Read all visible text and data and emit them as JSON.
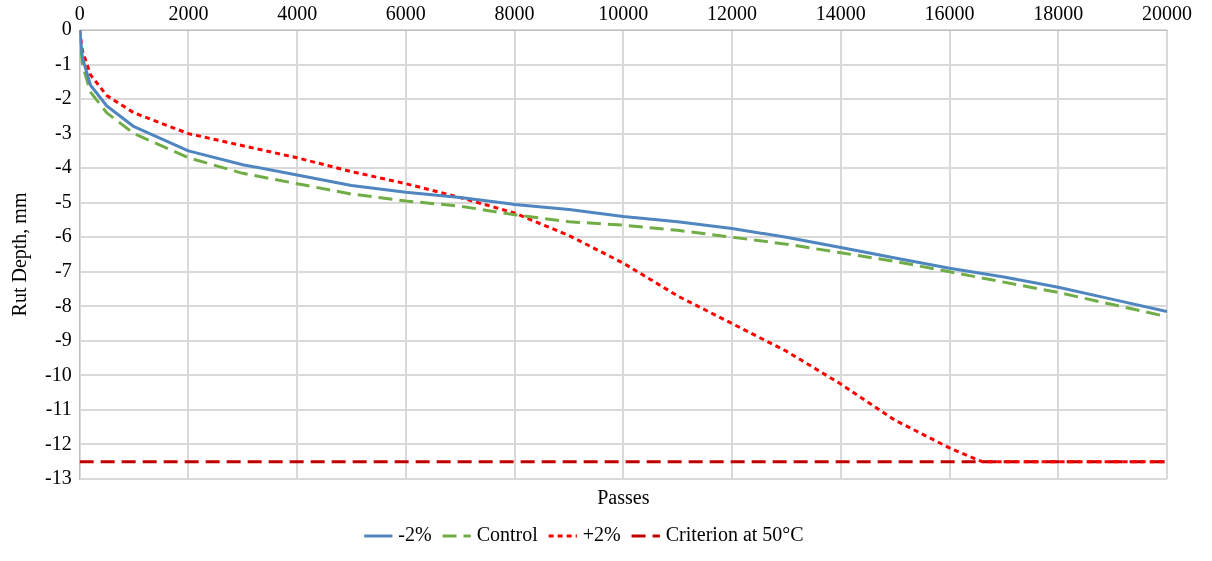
{
  "chart_data": {
    "type": "line",
    "xlabel": "Passes",
    "ylabel": "Rut Depth, mm",
    "xlim": [
      0,
      20000
    ],
    "xticks": [
      0,
      2000,
      4000,
      6000,
      8000,
      10000,
      12000,
      14000,
      16000,
      18000,
      20000
    ],
    "ylim": [
      -13,
      0
    ],
    "yticks": [
      -13,
      -12,
      -11,
      -10,
      -9,
      -8,
      -7,
      -6,
      -5,
      -4,
      -3,
      -2,
      -1,
      0
    ],
    "grid": true,
    "legend": "bottom",
    "marker": "none",
    "series": [
      {
        "name": "-2%",
        "color": "#4f86c0",
        "line_style": "solid",
        "x": [
          0,
          50,
          200,
          500,
          1000,
          2000,
          3000,
          4000,
          5000,
          6000,
          7000,
          8000,
          9000,
          10000,
          11000,
          12000,
          13000,
          14000,
          15000,
          16000,
          17000,
          18000,
          19000,
          20000
        ],
        "values": [
          0,
          -0.8,
          -1.6,
          -2.2,
          -2.8,
          -3.5,
          -3.9,
          -4.2,
          -4.5,
          -4.7,
          -4.85,
          -5.05,
          -5.2,
          -5.4,
          -5.55,
          -5.75,
          -6,
          -6.3,
          -6.6,
          -6.9,
          -7.15,
          -7.45,
          -7.8,
          -8.15
        ]
      },
      {
        "name": "Control",
        "color": "#70ad47",
        "line_style": "dashed",
        "x": [
          0,
          50,
          200,
          500,
          1000,
          2000,
          3000,
          4000,
          5000,
          6000,
          7000,
          8000,
          9000,
          10000,
          11000,
          12000,
          13000,
          14000,
          15000,
          16000,
          17000,
          18000,
          19000,
          20000
        ],
        "values": [
          0,
          -1,
          -1.8,
          -2.4,
          -3,
          -3.7,
          -4.15,
          -4.45,
          -4.75,
          -4.95,
          -5.1,
          -5.35,
          -5.55,
          -5.65,
          -5.8,
          -6,
          -6.2,
          -6.45,
          -6.7,
          -7,
          -7.3,
          -7.6,
          -7.95,
          -8.3
        ]
      },
      {
        "name": "+2%",
        "color": "#ff0000",
        "line_style": "dotted",
        "x": [
          0,
          50,
          200,
          500,
          1000,
          2000,
          3000,
          4000,
          5000,
          6000,
          7000,
          8000,
          9000,
          10000,
          11000,
          12000,
          13000,
          14000,
          15000,
          16000,
          16600,
          18000,
          20000
        ],
        "values": [
          0,
          -0.6,
          -1.3,
          -1.9,
          -2.4,
          -3,
          -3.35,
          -3.7,
          -4.1,
          -4.45,
          -4.85,
          -5.3,
          -5.95,
          -6.75,
          -7.7,
          -8.5,
          -9.3,
          -10.25,
          -11.3,
          -12.1,
          -12.5,
          -12.5,
          -12.5
        ]
      },
      {
        "name": "Criterion at 50°C",
        "color": "#c00000",
        "line_style": "dashed",
        "x": [
          0,
          20000
        ],
        "values": [
          -12.5,
          -12.5
        ]
      }
    ]
  }
}
